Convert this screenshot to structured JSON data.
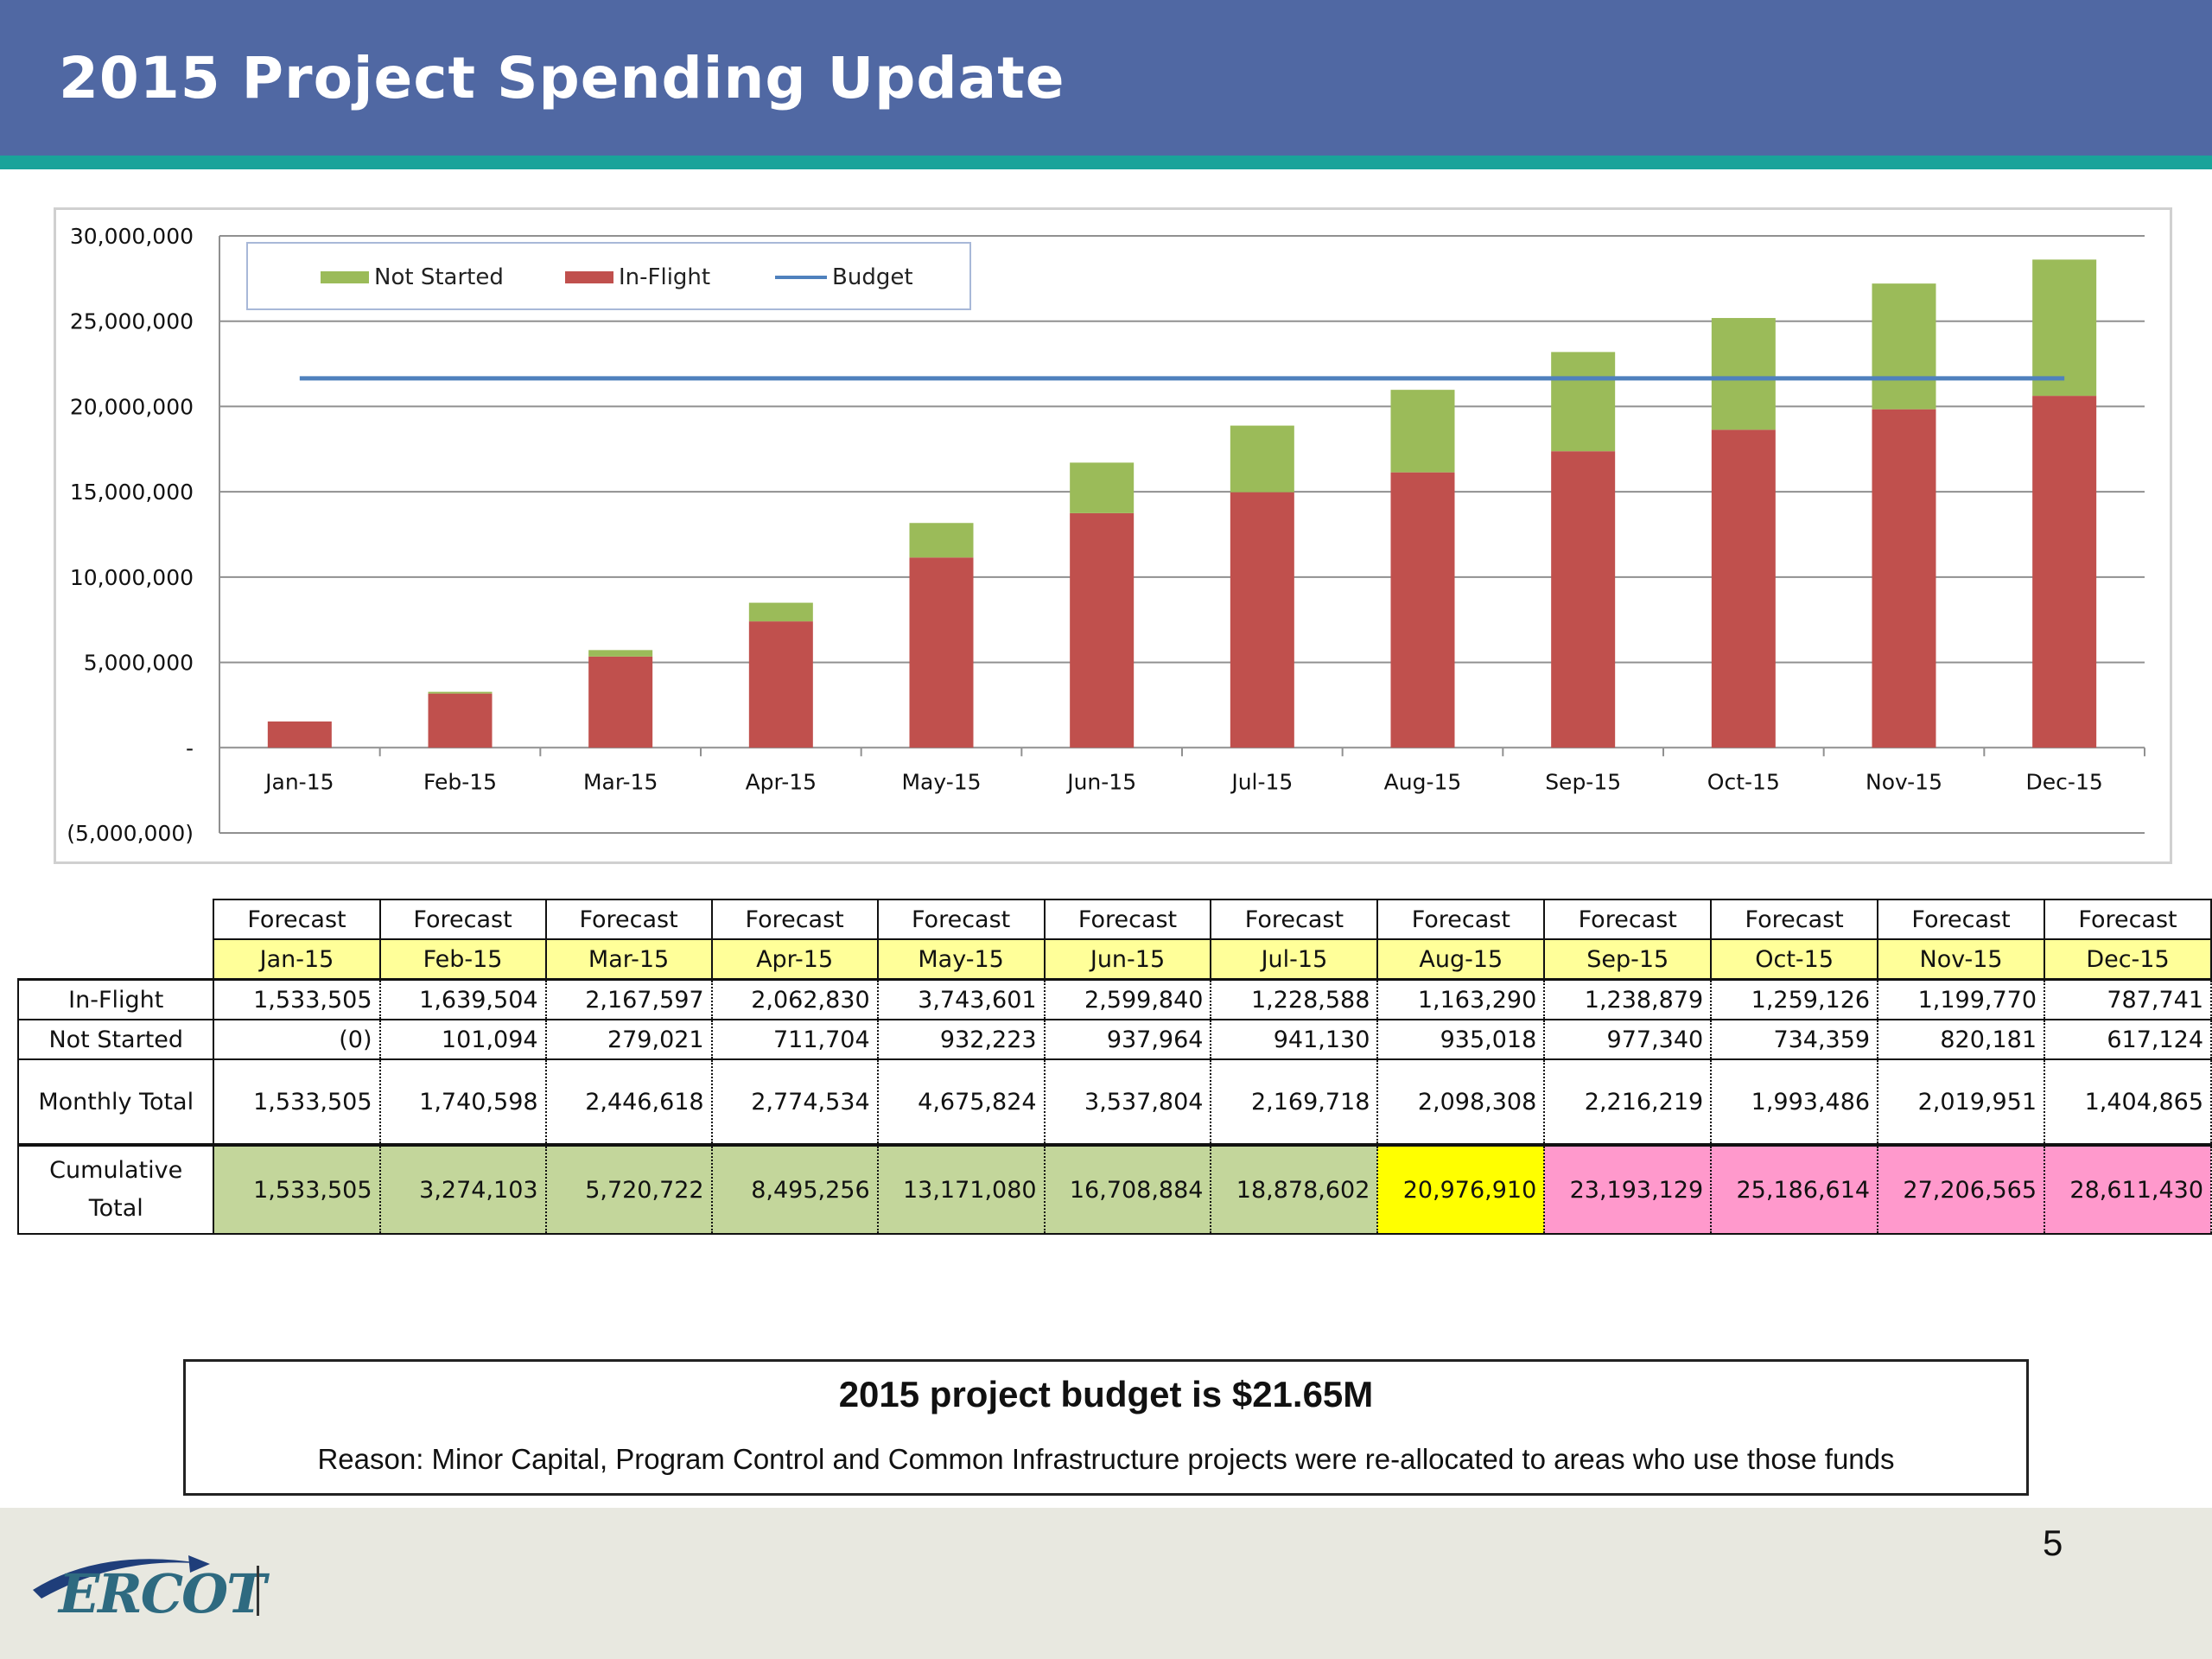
{
  "slide": {
    "title": "2015 Project Spending Update",
    "page_number": "5",
    "logo_text": "ERCOT"
  },
  "chart_data": {
    "type": "bar",
    "stacked": true,
    "categories": [
      "Jan-15",
      "Feb-15",
      "Mar-15",
      "Apr-15",
      "May-15",
      "Jun-15",
      "Jul-15",
      "Aug-15",
      "Sep-15",
      "Oct-15",
      "Nov-15",
      "Dec-15"
    ],
    "series": [
      {
        "name": "In-Flight",
        "color": "#C0504D",
        "values": [
          1533505,
          3173009,
          5340606,
          7403436,
          11147037,
          13746877,
          14975465,
          16138755,
          17377634,
          18636760,
          19836530,
          20624271
        ]
      },
      {
        "name": "Not Started",
        "color": "#9BBB59",
        "values": [
          0,
          101094,
          380115,
          1091819,
          2024042,
          2962006,
          3903136,
          4838154,
          5815494,
          6549853,
          7370034,
          7987158
        ]
      },
      {
        "name": "Budget",
        "type": "line",
        "color": "#4F81BD",
        "values": [
          21650000,
          21650000,
          21650000,
          21650000,
          21650000,
          21650000,
          21650000,
          21650000,
          21650000,
          21650000,
          21650000,
          21650000
        ]
      }
    ],
    "ylim": [
      -5000000,
      30000000
    ],
    "yticks": [
      30000000,
      25000000,
      20000000,
      15000000,
      10000000,
      5000000,
      0,
      -5000000
    ],
    "ytick_labels": [
      "30,000,000",
      "25,000,000",
      "20,000,000",
      "15,000,000",
      "10,000,000",
      "5,000,000",
      "-",
      "(5,000,000)"
    ],
    "grid": true,
    "legend_position": "top-left"
  },
  "table": {
    "forecast_label": "Forecast",
    "months": [
      "Jan-15",
      "Feb-15",
      "Mar-15",
      "Apr-15",
      "May-15",
      "Jun-15",
      "Jul-15",
      "Aug-15",
      "Sep-15",
      "Oct-15",
      "Nov-15",
      "Dec-15"
    ],
    "rows": [
      {
        "label": "In-Flight",
        "values": [
          "1,533,505",
          "1,639,504",
          "2,167,597",
          "2,062,830",
          "3,743,601",
          "2,599,840",
          "1,228,588",
          "1,163,290",
          "1,238,879",
          "1,259,126",
          "1,199,770",
          "787,741"
        ]
      },
      {
        "label": "Not Started",
        "values": [
          "(0)",
          "101,094",
          "279,021",
          "711,704",
          "932,223",
          "937,964",
          "941,130",
          "935,018",
          "977,340",
          "734,359",
          "820,181",
          "617,124"
        ]
      },
      {
        "label": "Monthly Total",
        "values": [
          "1,533,505",
          "1,740,598",
          "2,446,618",
          "2,774,534",
          "4,675,824",
          "3,537,804",
          "2,169,718",
          "2,098,308",
          "2,216,219",
          "1,993,486",
          "2,019,951",
          "1,404,865"
        ]
      }
    ],
    "cumulative": {
      "label_line1": "Cumulative",
      "label_line2": "Total",
      "values": [
        "1,533,505",
        "3,274,103",
        "5,720,722",
        "8,495,256",
        "13,171,080",
        "16,708,884",
        "18,878,602",
        "20,976,910",
        "23,193,129",
        "25,186,614",
        "27,206,565",
        "28,611,430"
      ],
      "highlight": [
        "green",
        "green",
        "green",
        "green",
        "green",
        "green",
        "green",
        "yellow",
        "pink",
        "pink",
        "pink",
        "pink"
      ]
    }
  },
  "note": {
    "headline": "2015 project budget is $21.65M",
    "reason": "Reason: Minor Capital, Program Control and Common Infrastructure projects were re-allocated to areas who use those funds"
  }
}
